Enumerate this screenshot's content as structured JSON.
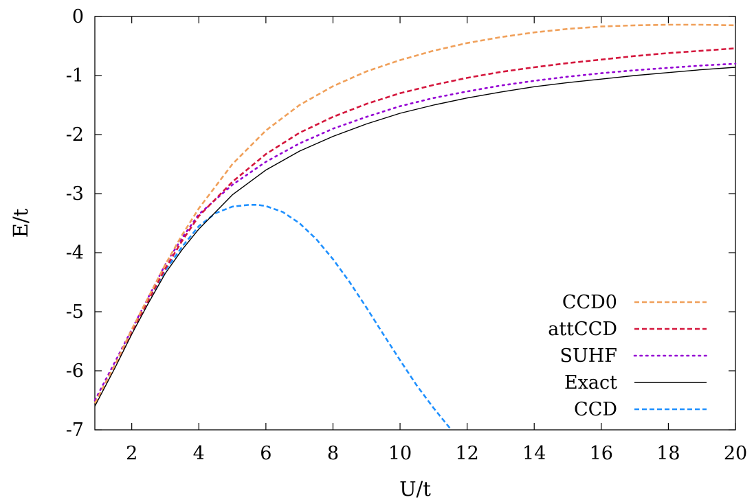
{
  "chart_data": {
    "type": "line",
    "title": "",
    "xlabel": "U/t",
    "ylabel": "E/t",
    "xlim": [
      0.9,
      20
    ],
    "ylim": [
      -7,
      0
    ],
    "xticks": [
      2,
      4,
      6,
      8,
      10,
      12,
      14,
      16,
      18,
      20
    ],
    "xtick_labels": [
      "2",
      "4",
      "6",
      "8",
      "10",
      "12",
      "14",
      "16",
      "18",
      "20"
    ],
    "yticks": [
      0,
      -1,
      -2,
      -3,
      -4,
      -5,
      -6,
      -7
    ],
    "ytick_labels": [
      "0",
      "-1",
      "-2",
      "-3",
      "-4",
      "-5",
      "-6",
      "-7"
    ],
    "grid": false,
    "legend_position": "bottom-right",
    "series": [
      {
        "name": "CCD0",
        "color": "#f0a05a",
        "style": "dashed",
        "x": [
          0.9,
          1.5,
          2,
          2.5,
          3,
          3.5,
          4,
          5,
          6,
          7,
          8,
          9,
          10,
          11,
          12,
          13,
          14,
          15,
          16,
          17,
          18,
          19,
          20
        ],
        "y": [
          -6.55,
          -5.9,
          -5.3,
          -4.75,
          -4.2,
          -3.7,
          -3.25,
          -2.5,
          -1.93,
          -1.5,
          -1.18,
          -0.93,
          -0.74,
          -0.58,
          -0.45,
          -0.35,
          -0.27,
          -0.21,
          -0.17,
          -0.15,
          -0.14,
          -0.14,
          -0.15
        ]
      },
      {
        "name": "attCCD",
        "color": "#d4163c",
        "style": "dashed",
        "x": [
          0.9,
          1.5,
          2,
          2.5,
          3,
          3.5,
          4,
          5,
          6,
          7,
          8,
          9,
          10,
          11,
          12,
          13,
          14,
          15,
          16,
          17,
          18,
          19,
          20
        ],
        "y": [
          -6.55,
          -5.9,
          -5.33,
          -4.8,
          -4.27,
          -3.8,
          -3.38,
          -2.8,
          -2.33,
          -1.97,
          -1.7,
          -1.48,
          -1.3,
          -1.16,
          -1.04,
          -0.94,
          -0.86,
          -0.79,
          -0.73,
          -0.67,
          -0.62,
          -0.58,
          -0.54
        ]
      },
      {
        "name": "SUHF",
        "color": "#9400d3",
        "style": "dotted",
        "x": [
          0.9,
          1.5,
          2,
          2.5,
          3,
          3.5,
          4,
          5,
          6,
          7,
          8,
          9,
          10,
          11,
          12,
          13,
          14,
          15,
          16,
          17,
          18,
          19,
          20
        ],
        "y": [
          -6.5,
          -5.85,
          -5.3,
          -4.75,
          -4.2,
          -3.75,
          -3.35,
          -2.85,
          -2.46,
          -2.15,
          -1.9,
          -1.7,
          -1.52,
          -1.38,
          -1.27,
          -1.17,
          -1.09,
          -1.02,
          -0.96,
          -0.91,
          -0.87,
          -0.83,
          -0.8
        ]
      },
      {
        "name": "Exact",
        "color": "#000000",
        "style": "solid",
        "x": [
          0.9,
          1.5,
          2,
          2.5,
          3,
          3.5,
          4,
          5,
          6,
          7,
          8,
          9,
          10,
          11,
          12,
          13,
          14,
          15,
          16,
          17,
          18,
          19,
          20
        ],
        "y": [
          -6.6,
          -5.95,
          -5.38,
          -4.85,
          -4.35,
          -3.95,
          -3.6,
          -3.02,
          -2.6,
          -2.28,
          -2.03,
          -1.82,
          -1.64,
          -1.5,
          -1.38,
          -1.28,
          -1.19,
          -1.12,
          -1.06,
          -1.0,
          -0.95,
          -0.9,
          -0.86
        ]
      },
      {
        "name": "CCD",
        "color": "#1e90ff",
        "style": "dashed",
        "x": [
          0.9,
          1.5,
          2,
          2.5,
          3,
          3.5,
          4,
          4.5,
          5,
          5.5,
          5.75,
          6,
          6.5,
          7,
          7.5,
          8,
          8.5,
          9,
          9.5,
          10,
          10.5,
          11,
          11.5
        ],
        "y": [
          -6.55,
          -5.93,
          -5.33,
          -4.8,
          -4.3,
          -3.9,
          -3.55,
          -3.33,
          -3.22,
          -3.19,
          -3.19,
          -3.21,
          -3.31,
          -3.5,
          -3.77,
          -4.11,
          -4.5,
          -4.93,
          -5.38,
          -5.82,
          -6.25,
          -6.63,
          -6.98
        ]
      }
    ]
  }
}
